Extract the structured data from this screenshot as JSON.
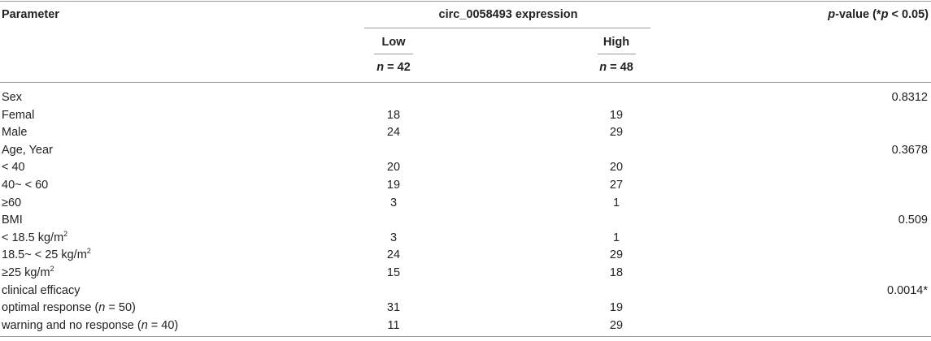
{
  "header": {
    "parameter": "Parameter",
    "group": "circ_0058493 expression",
    "low": "Low",
    "high": "High",
    "pvalue": [
      "p",
      "-value (*",
      "p",
      " < 0.05)"
    ],
    "n_low": [
      "n",
      " = 42"
    ],
    "n_high": [
      "n",
      " = 48"
    ]
  },
  "rows": [
    {
      "label": "Sex",
      "p": "0.8312"
    },
    {
      "label": "Femal",
      "low": "18",
      "high": "19"
    },
    {
      "label": "Male",
      "low": "24",
      "high": "29"
    },
    {
      "label": "Age, Year",
      "p": "0.3678"
    },
    {
      "label": "< 40",
      "low": "20",
      "high": "20"
    },
    {
      "label": "40~ < 60",
      "low": "19",
      "high": "27"
    },
    {
      "label": "≥60",
      "low": "3",
      "high": "1"
    },
    {
      "label": "BMI",
      "p": "0.509"
    },
    {
      "label": [
        "< 18.5 kg/m",
        "2"
      ],
      "low": "3",
      "high": "1"
    },
    {
      "label": [
        "18.5~ < 25 kg/m",
        "2"
      ],
      "low": "24",
      "high": "29"
    },
    {
      "label": [
        "≥25 kg/m",
        "2"
      ],
      "low": "15",
      "high": "18"
    },
    {
      "label": "clinical efficacy",
      "p": "0.0014*"
    },
    {
      "label": [
        "optimal response (",
        "n",
        " = 50)"
      ],
      "low": "31",
      "high": "19"
    },
    {
      "label": [
        "warning and no response (",
        "n",
        " = 40)"
      ],
      "low": "11",
      "high": "29"
    }
  ]
}
